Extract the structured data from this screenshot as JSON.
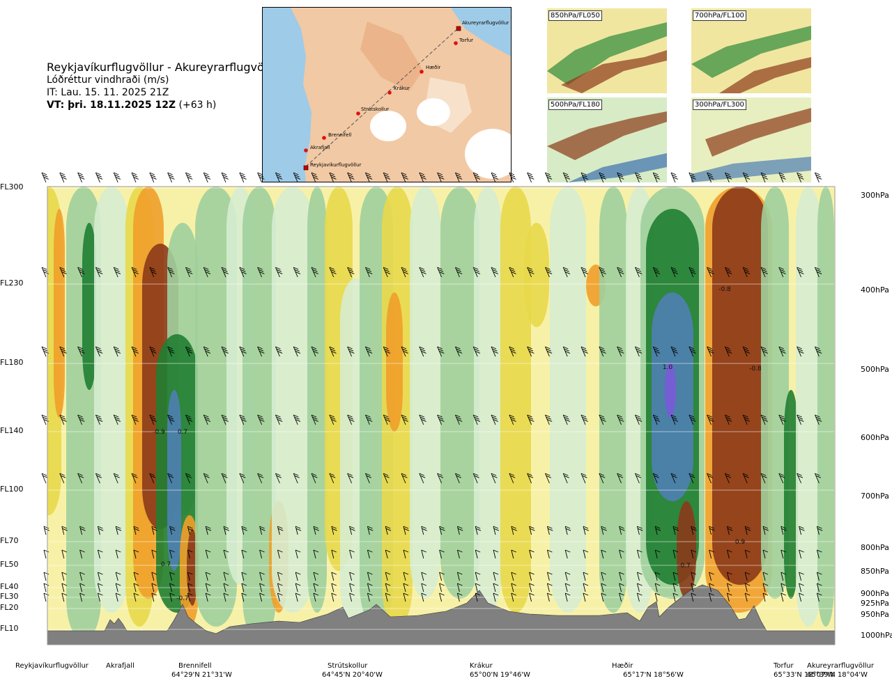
{
  "header": {
    "title": "Reykjavíkurflugvöllur - Akureyrarflugvöllur",
    "variable": "Lóðréttur vindhraði (m/s)",
    "issue_time": "IT: Lau. 15. 11. 2025 21Z",
    "valid_time": "VT: þri. 18.11.2025 12Z",
    "lead_time": "(+63 h)"
  },
  "route_map": {
    "points": [
      {
        "label": "Reykjavíkurflugvöllur"
      },
      {
        "label": "Akrafjall"
      },
      {
        "label": "Brennifell"
      },
      {
        "label": "Strútskollur"
      },
      {
        "label": "Krákur"
      },
      {
        "label": "Hæðir"
      },
      {
        "label": "Torfur"
      },
      {
        "label": "Akureyrarflugvöllur"
      }
    ]
  },
  "level_maps": [
    {
      "label": "850hPa/FL050"
    },
    {
      "label": "700hPa/FL100"
    },
    {
      "label": "500hPa/FL180"
    },
    {
      "label": "300hPa/FL300"
    }
  ],
  "chart_data": {
    "type": "heatmap",
    "title": "Lóðréttur vindhraði (m/s)",
    "x_type": "cross-section distance along route",
    "levels": [
      {
        "fl": "FL300",
        "hpa": "300hPa"
      },
      {
        "fl": "FL230",
        "hpa": "400hPa"
      },
      {
        "fl": "FL180",
        "hpa": "500hPa"
      },
      {
        "fl": "FL140",
        "hpa": "600hPa"
      },
      {
        "fl": "FL100",
        "hpa": "700hPa"
      },
      {
        "fl": "FL70",
        "hpa": "800hPa"
      },
      {
        "fl": "FL50",
        "hpa": "850hPa"
      },
      {
        "fl": "FL40",
        "hpa": "900hPa"
      },
      {
        "fl": "FL30",
        "hpa": "925hPa"
      },
      {
        "fl": "FL20",
        "hpa": "950hPa"
      },
      {
        "fl": "FL10",
        "hpa": "1000hPa"
      }
    ],
    "annotations": [
      {
        "text": "-0.9"
      },
      {
        "text": "0.7"
      },
      {
        "text": "0.7"
      },
      {
        "text": "-0.7"
      },
      {
        "text": "1.0"
      },
      {
        "text": "-0.8"
      },
      {
        "text": "-0.8"
      },
      {
        "text": "0.9"
      },
      {
        "text": "-0.7"
      }
    ],
    "waypoints": [
      {
        "name": "Reykjavíkurflugvöllur",
        "coord": ""
      },
      {
        "name": "Akrafjall",
        "coord": ""
      },
      {
        "name": "Brennifell",
        "coord": "64°29'N 21°31'W"
      },
      {
        "name": "Strútskollur",
        "coord": "64°45'N 20°40'W"
      },
      {
        "name": "Krákur",
        "coord": "65°00'N 19°46'W"
      },
      {
        "name": "Hæðir",
        "coord": "65°17'N 18°56'W"
      },
      {
        "name": "Torfur",
        "coord": "65°33'N 18°07'W"
      },
      {
        "name": "Akureyrarflugvöllur",
        "coord": "65°39'N 18°04'W"
      }
    ]
  },
  "colors": {
    "strong_down": "#8b3a1a",
    "down": "#ef9e2a",
    "weak_down": "#e8d84a",
    "light_down": "#f7f1a8",
    "light_up": "#d6ecd0",
    "up": "#9fcf9c",
    "strong_up": "#1f7e31",
    "very_strong_up": "#4f7fb3",
    "terrain": "#808080"
  }
}
